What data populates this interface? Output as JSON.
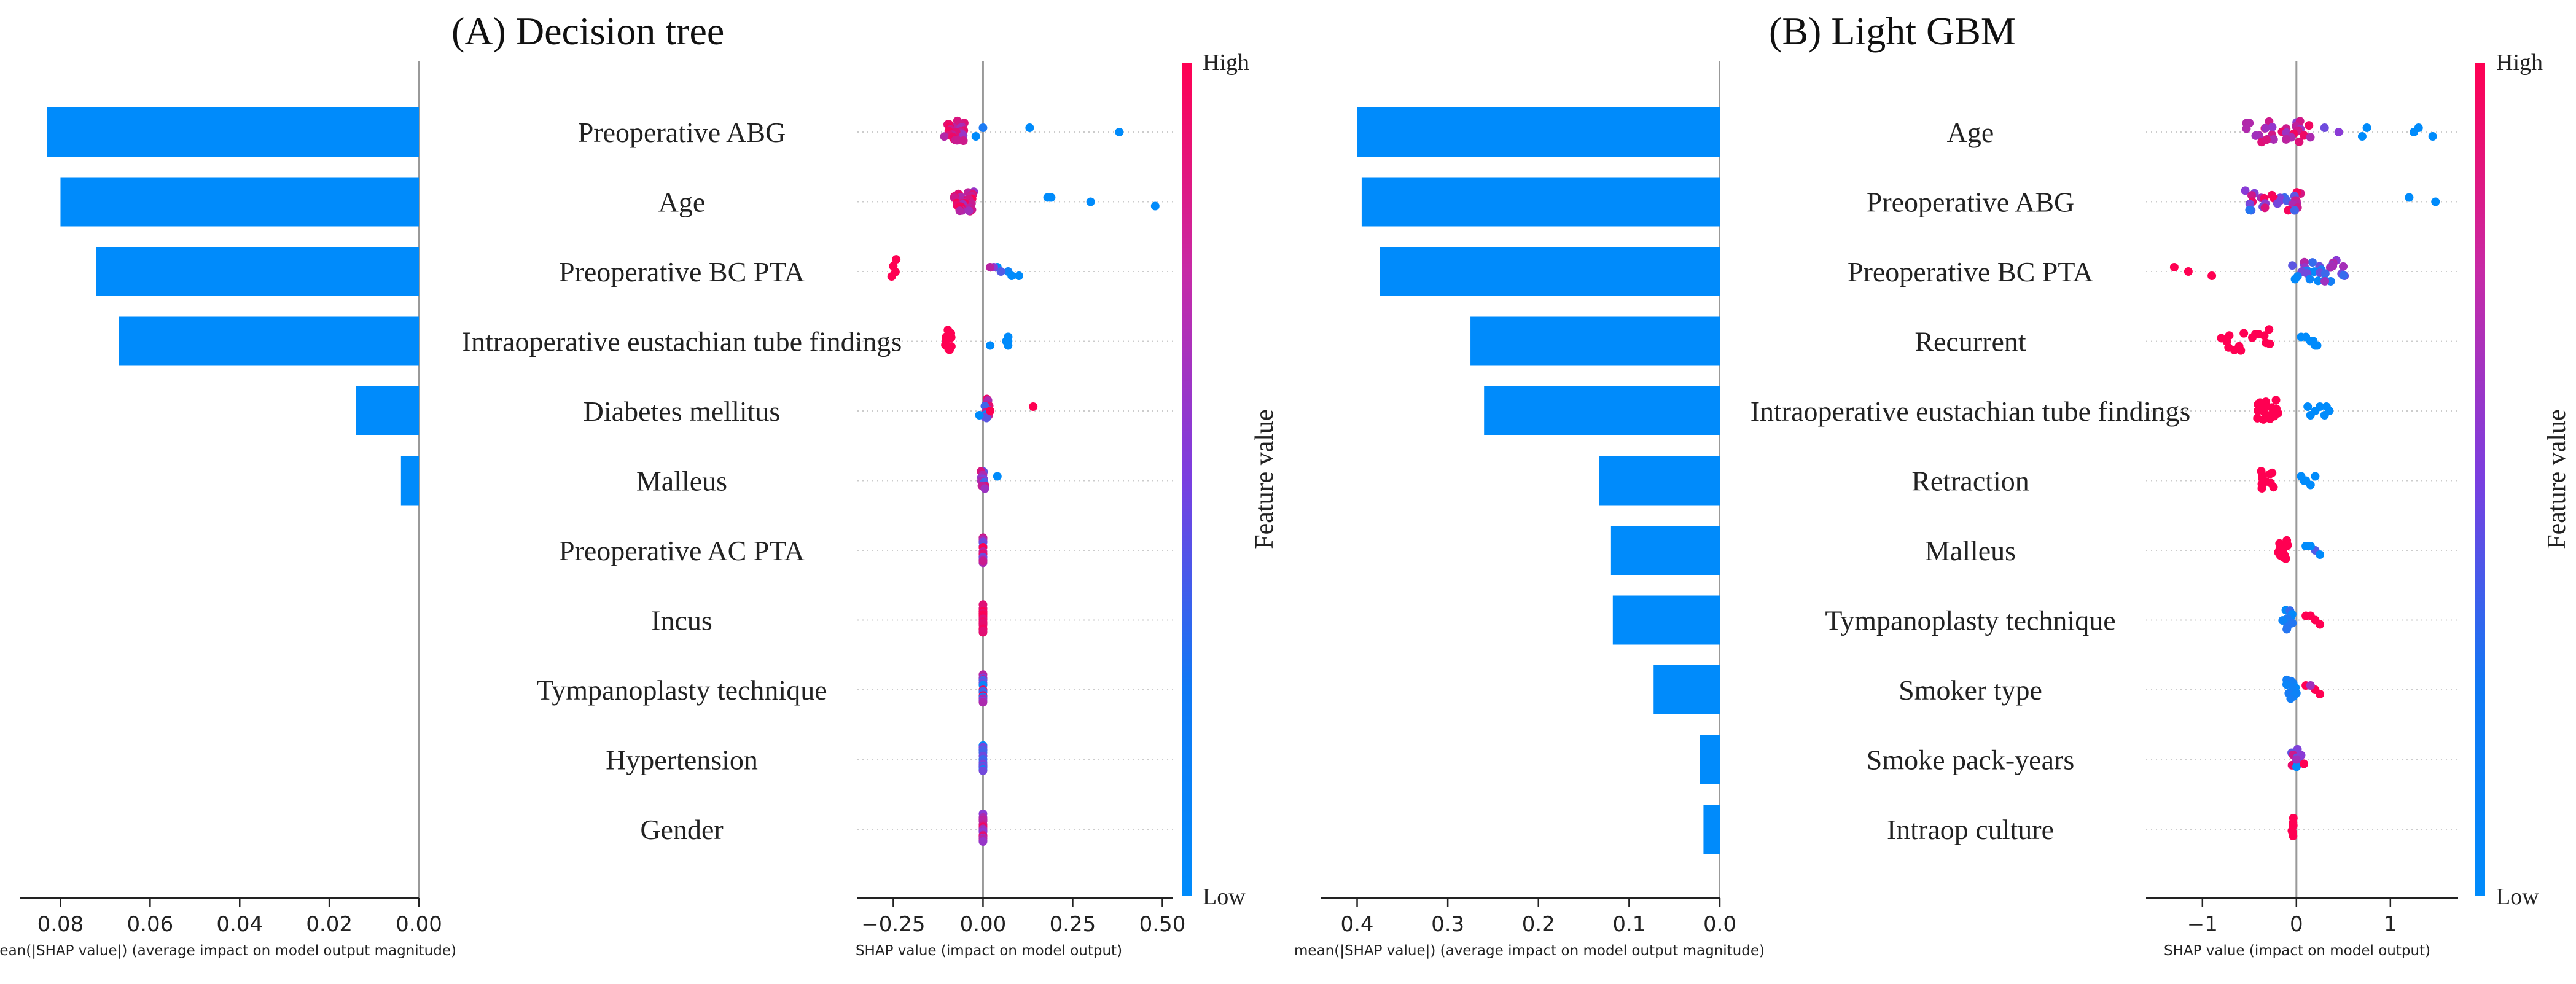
{
  "colors": {
    "bar": "#008bfb",
    "high": "#ff0052",
    "mid": "#8a3bd6",
    "low": "#008bfb",
    "grid": "#cccccc",
    "axis": "#222222"
  },
  "chart_data": [
    {
      "panel": "A",
      "title": "(A) Decision tree",
      "type": "bar",
      "orientation": "horizontal",
      "xlabel": "mean(|SHAP value|) (average impact on model output magnitude)",
      "xlim": [
        0,
        0.085
      ],
      "xticks": [
        0.08,
        0.06,
        0.04,
        0.02,
        0.0
      ],
      "xtick_labels": [
        "0.08",
        "0.06",
        "0.04",
        "0.02",
        "0.00"
      ],
      "inverted_x": true,
      "categories": [
        "Preoperative ABG",
        "Age",
        "Preoperative BC PTA",
        "Intraoperative eustachian tube findings",
        "Diabetes mellitus",
        "Malleus",
        "Preoperative AC PTA",
        "Incus",
        "Tympanoplasty technique",
        "Hypertension",
        "Gender"
      ],
      "values": [
        0.083,
        0.08,
        0.072,
        0.067,
        0.014,
        0.004,
        0.0,
        0.0,
        0.0,
        0.0,
        0.0
      ],
      "beeswarm": {
        "type": "scatter",
        "xlabel": "SHAP value (impact on model output)",
        "xlim": [
          -0.35,
          0.53
        ],
        "xticks": [
          -0.25,
          0.0,
          0.25,
          0.5
        ],
        "xtick_labels": [
          "−0.25",
          "0.00",
          "0.25",
          "0.50"
        ],
        "colorbar_label": "Feature value",
        "colorbar_high": "High",
        "colorbar_low": "Low",
        "clusters": [
          {
            "center": -0.08,
            "n": 28,
            "spread": 0.028,
            "cmin": 0.55,
            "cmax": 1.0
          },
          {
            "center": -0.05,
            "n": 36,
            "spread": 0.03,
            "cmin": 0.55,
            "cmax": 1.0
          },
          {
            "center": -0.25,
            "n": 4,
            "spread": 0.015,
            "cmin": 1.0,
            "cmax": 1.0
          },
          {
            "center": -0.1,
            "n": 10,
            "spread": 0.012,
            "cmin": 1.0,
            "cmax": 1.0
          },
          {
            "center": 0.01,
            "n": 12,
            "spread": 0.008,
            "cmin": 0.0,
            "cmax": 1.0
          },
          {
            "center": 0.0,
            "n": 10,
            "spread": 0.006,
            "cmin": 0.2,
            "cmax": 1.0
          },
          {
            "center": 0.0,
            "n": 18,
            "spread": 0.0,
            "cmin": 0.3,
            "cmax": 1.0
          },
          {
            "center": 0.0,
            "n": 22,
            "spread": 0.0,
            "cmin": 0.85,
            "cmax": 1.0
          },
          {
            "center": 0.0,
            "n": 18,
            "spread": 0.0,
            "cmin": 0.0,
            "cmax": 1.0
          },
          {
            "center": 0.0,
            "n": 18,
            "spread": 0.0,
            "cmin": 0.0,
            "cmax": 0.5
          },
          {
            "center": 0.0,
            "n": 20,
            "spread": 0.0,
            "cmin": 0.5,
            "cmax": 1.0
          }
        ],
        "extras": [
          [
            [
              0.13,
              0.0
            ],
            [
              0.38,
              0.0
            ],
            [
              -0.02,
              0.0
            ],
            [
              0.0,
              0.1
            ]
          ],
          [
            [
              0.19,
              0.0
            ],
            [
              0.3,
              0.0
            ],
            [
              0.48,
              0.0
            ],
            [
              0.18,
              0.0
            ]
          ],
          [
            [
              0.04,
              0.0
            ],
            [
              0.07,
              0.05
            ],
            [
              0.1,
              0.0
            ],
            [
              0.03,
              0.5
            ],
            [
              0.05,
              0.3
            ],
            [
              0.08,
              0.0
            ],
            [
              0.02,
              0.7
            ]
          ],
          [
            [
              0.07,
              0.0
            ],
            [
              0.065,
              0.0
            ],
            [
              0.07,
              0.0
            ],
            [
              0.07,
              0.0
            ],
            [
              0.07,
              0.0
            ],
            [
              0.02,
              0.0
            ]
          ],
          [
            [
              0.14,
              1.0
            ],
            [
              0.02,
              1.0
            ],
            [
              -0.01,
              0.0
            ]
          ],
          [
            [
              0.04,
              0.0
            ]
          ],
          [],
          [],
          [],
          [],
          []
        ]
      }
    },
    {
      "panel": "B",
      "title": "(B) Light GBM",
      "type": "bar",
      "orientation": "horizontal",
      "xlabel": "mean(|SHAP value|) (average impact on model output magnitude)",
      "xlim": [
        0,
        0.42
      ],
      "xticks": [
        0.4,
        0.3,
        0.2,
        0.1,
        0.0
      ],
      "xtick_labels": [
        "0.4",
        "0.3",
        "0.2",
        "0.1",
        "0.0"
      ],
      "inverted_x": true,
      "categories": [
        "Age",
        "Preoperative ABG",
        "Preoperative BC PTA",
        "Recurrent",
        "Intraoperative eustachian tube findings",
        "Retraction",
        "Malleus",
        "Tympanoplasty technique",
        "Smoker type",
        "Smoke pack-years",
        "Intraop culture"
      ],
      "values": [
        0.4,
        0.395,
        0.375,
        0.275,
        0.26,
        0.133,
        0.12,
        0.118,
        0.073,
        0.022,
        0.018
      ],
      "beeswarm": {
        "type": "scatter",
        "xlabel": "SHAP value (impact on model output)",
        "xlim": [
          -1.6,
          1.72
        ],
        "xticks": [
          -1,
          0,
          1
        ],
        "xtick_labels": [
          "−1",
          "0",
          "1"
        ],
        "colorbar_label": "Feature value",
        "colorbar_high": "High",
        "colorbar_low": "Low",
        "clusters": [
          {
            "center": -0.2,
            "n": 30,
            "spread": 0.35,
            "cmin": 0.5,
            "cmax": 1.0
          },
          {
            "center": -0.25,
            "n": 30,
            "spread": 0.3,
            "cmin": 0.0,
            "cmax": 1.0
          },
          {
            "center": 0.25,
            "n": 30,
            "spread": 0.3,
            "cmin": 0.0,
            "cmax": 0.7
          },
          {
            "center": -0.45,
            "n": 16,
            "spread": 0.35,
            "cmin": 1.0,
            "cmax": 1.0
          },
          {
            "center": -0.3,
            "n": 18,
            "spread": 0.12,
            "cmin": 1.0,
            "cmax": 1.0
          },
          {
            "center": -0.3,
            "n": 10,
            "spread": 0.08,
            "cmin": 1.0,
            "cmax": 1.0
          },
          {
            "center": -0.15,
            "n": 12,
            "spread": 0.06,
            "cmin": 1.0,
            "cmax": 1.0
          },
          {
            "center": -0.1,
            "n": 10,
            "spread": 0.06,
            "cmin": 0.0,
            "cmax": 0.2
          },
          {
            "center": -0.05,
            "n": 10,
            "spread": 0.06,
            "cmin": 0.0,
            "cmax": 0.1
          },
          {
            "center": 0.0,
            "n": 10,
            "spread": 0.06,
            "cmin": 0.0,
            "cmax": 1.0
          },
          {
            "center": -0.05,
            "n": 6,
            "spread": 0.02,
            "cmin": 1.0,
            "cmax": 1.0
          }
        ],
        "extras": [
          [
            [
              0.3,
              0.4
            ],
            [
              0.45,
              0.5
            ],
            [
              0.7,
              0.0
            ],
            [
              0.75,
              0.0
            ],
            [
              1.25,
              0.0
            ],
            [
              1.45,
              0.0
            ],
            [
              1.3,
              0.0
            ]
          ],
          [
            [
              1.2,
              0.0
            ],
            [
              1.48,
              0.0
            ]
          ],
          [
            [
              -1.3,
              1.0
            ],
            [
              -1.15,
              1.0
            ],
            [
              -0.9,
              1.0
            ]
          ],
          [
            [
              0.1,
              0.0
            ],
            [
              0.15,
              0.0
            ],
            [
              0.2,
              0.0
            ],
            [
              0.05,
              0.0
            ],
            [
              0.18,
              0.0
            ],
            [
              0.22,
              0.0
            ]
          ],
          [
            [
              0.12,
              0.0
            ],
            [
              0.2,
              0.0
            ],
            [
              0.3,
              0.0
            ],
            [
              0.25,
              0.0
            ],
            [
              0.35,
              0.0
            ],
            [
              0.15,
              0.0
            ],
            [
              0.32,
              0.0
            ]
          ],
          [
            [
              0.05,
              0.0
            ],
            [
              0.1,
              0.0
            ],
            [
              0.15,
              0.0
            ],
            [
              0.2,
              0.0
            ],
            [
              0.08,
              0.0
            ]
          ],
          [
            [
              0.1,
              0.0
            ],
            [
              0.2,
              0.3
            ],
            [
              0.25,
              0.0
            ],
            [
              0.15,
              0.0
            ]
          ],
          [
            [
              0.1,
              1.0
            ],
            [
              0.2,
              1.0
            ],
            [
              0.25,
              1.0
            ],
            [
              0.15,
              1.0
            ]
          ],
          [
            [
              0.1,
              1.0
            ],
            [
              0.2,
              1.0
            ],
            [
              0.25,
              1.0
            ],
            [
              0.15,
              0.6
            ]
          ],
          [
            [
              0.05,
              0.5
            ],
            [
              0.0,
              0.6
            ],
            [
              0.08,
              1.0
            ]
          ],
          []
        ]
      }
    }
  ]
}
